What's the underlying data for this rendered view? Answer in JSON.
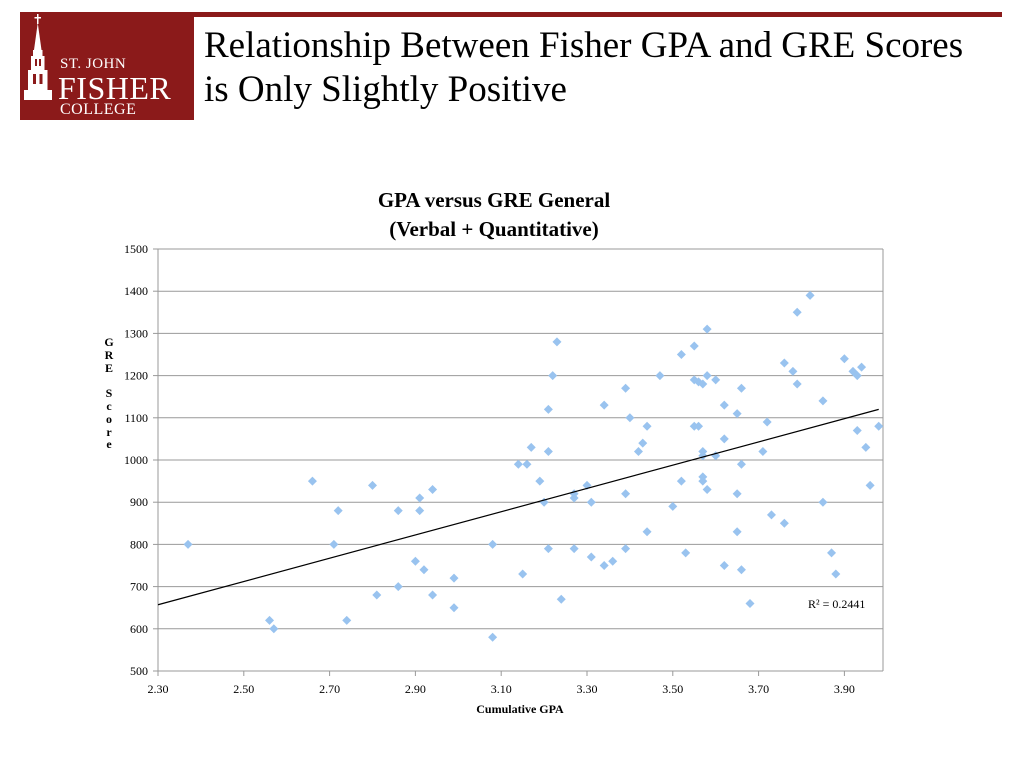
{
  "logo": {
    "line1": "ST. JOHN",
    "line2": "FISHER",
    "line3": "COLLEGE"
  },
  "slide_title": "Relationship Between Fisher GPA and GRE Scores is Only Slightly Positive",
  "colors": {
    "brand": "#8b1a1a",
    "marker": "#99c3ef",
    "grid": "#999999",
    "trendline": "#000000"
  },
  "chart_data": {
    "type": "scatter",
    "title": "GPA versus GRE General (Verbal + Quantitative)",
    "title_line1": "GPA versus GRE General",
    "title_line2": "(Verbal + Quantitative)",
    "xlabel": "Cumulative GPA",
    "ylabel": "GRE Score",
    "xlim": [
      2.3,
      3.99
    ],
    "ylim": [
      500,
      1500
    ],
    "x_ticks": [
      "2.30",
      "2.50",
      "2.70",
      "2.90",
      "3.10",
      "3.30",
      "3.50",
      "3.70",
      "3.90"
    ],
    "y_ticks": [
      "500",
      "600",
      "700",
      "800",
      "900",
      "1000",
      "1100",
      "1200",
      "1300",
      "1400",
      "1500"
    ],
    "grid": "horizontal",
    "trendline": {
      "from": [
        2.3,
        657
      ],
      "to": [
        3.98,
        1120
      ]
    },
    "r_squared": "R² = 0.2441",
    "points": [
      [
        2.37,
        800
      ],
      [
        2.56,
        620
      ],
      [
        2.57,
        600
      ],
      [
        2.66,
        950
      ],
      [
        2.71,
        800
      ],
      [
        2.72,
        880
      ],
      [
        2.74,
        620
      ],
      [
        2.8,
        940
      ],
      [
        2.81,
        680
      ],
      [
        2.86,
        700
      ],
      [
        2.86,
        880
      ],
      [
        2.9,
        760
      ],
      [
        2.91,
        910
      ],
      [
        2.91,
        880
      ],
      [
        2.92,
        740
      ],
      [
        2.94,
        930
      ],
      [
        2.94,
        680
      ],
      [
        2.99,
        720
      ],
      [
        2.99,
        650
      ],
      [
        3.08,
        800
      ],
      [
        3.08,
        580
      ],
      [
        3.14,
        990
      ],
      [
        3.15,
        730
      ],
      [
        3.16,
        990
      ],
      [
        3.17,
        1030
      ],
      [
        3.19,
        950
      ],
      [
        3.2,
        900
      ],
      [
        3.21,
        1120
      ],
      [
        3.21,
        790
      ],
      [
        3.21,
        1020
      ],
      [
        3.22,
        1200
      ],
      [
        3.23,
        1280
      ],
      [
        3.24,
        670
      ],
      [
        3.27,
        920
      ],
      [
        3.27,
        910
      ],
      [
        3.27,
        790
      ],
      [
        3.3,
        940
      ],
      [
        3.31,
        770
      ],
      [
        3.31,
        900
      ],
      [
        3.34,
        1130
      ],
      [
        3.34,
        750
      ],
      [
        3.36,
        760
      ],
      [
        3.39,
        1170
      ],
      [
        3.39,
        920
      ],
      [
        3.39,
        790
      ],
      [
        3.4,
        1100
      ],
      [
        3.42,
        1020
      ],
      [
        3.43,
        1040
      ],
      [
        3.44,
        1080
      ],
      [
        3.44,
        830
      ],
      [
        3.47,
        1200
      ],
      [
        3.5,
        890
      ],
      [
        3.52,
        950
      ],
      [
        3.52,
        1250
      ],
      [
        3.53,
        780
      ],
      [
        3.55,
        1080
      ],
      [
        3.55,
        1190
      ],
      [
        3.55,
        1270
      ],
      [
        3.56,
        1080
      ],
      [
        3.56,
        1185
      ],
      [
        3.57,
        1180
      ],
      [
        3.57,
        950
      ],
      [
        3.57,
        1010
      ],
      [
        3.57,
        1020
      ],
      [
        3.57,
        960
      ],
      [
        3.58,
        1310
      ],
      [
        3.58,
        1200
      ],
      [
        3.58,
        930
      ],
      [
        3.6,
        1190
      ],
      [
        3.6,
        1010
      ],
      [
        3.62,
        1130
      ],
      [
        3.62,
        1050
      ],
      [
        3.62,
        750
      ],
      [
        3.65,
        830
      ],
      [
        3.65,
        920
      ],
      [
        3.65,
        1110
      ],
      [
        3.66,
        1170
      ],
      [
        3.66,
        740
      ],
      [
        3.66,
        990
      ],
      [
        3.68,
        660
      ],
      [
        3.71,
        1020
      ],
      [
        3.72,
        1090
      ],
      [
        3.73,
        870
      ],
      [
        3.76,
        850
      ],
      [
        3.76,
        1230
      ],
      [
        3.78,
        1210
      ],
      [
        3.79,
        1350
      ],
      [
        3.79,
        1180
      ],
      [
        3.82,
        1390
      ],
      [
        3.85,
        1140
      ],
      [
        3.85,
        900
      ],
      [
        3.87,
        780
      ],
      [
        3.88,
        730
      ],
      [
        3.9,
        1240
      ],
      [
        3.92,
        1210
      ],
      [
        3.93,
        1070
      ],
      [
        3.93,
        1200
      ],
      [
        3.94,
        1220
      ],
      [
        3.95,
        1030
      ],
      [
        3.96,
        940
      ],
      [
        3.98,
        1080
      ]
    ]
  }
}
